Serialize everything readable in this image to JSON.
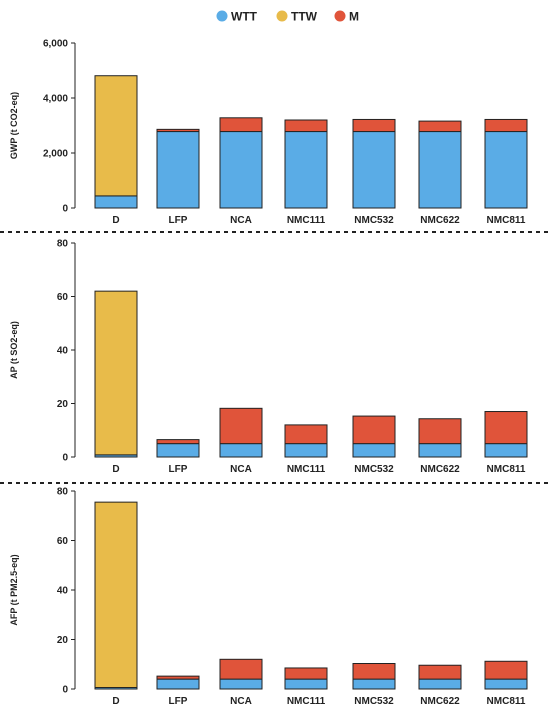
{
  "legend": {
    "items": [
      {
        "label": "WTT",
        "color": "#5AACE6"
      },
      {
        "label": "TTW",
        "color": "#E8BB4A"
      },
      {
        "label": "M",
        "color": "#E0543A"
      }
    ]
  },
  "chart_data": [
    {
      "type": "bar",
      "stacked": true,
      "ylabel": "GWP (t CO2-eq)",
      "ylim": [
        0,
        6000
      ],
      "yticks": [
        0,
        2000,
        4000,
        6000
      ],
      "ytick_labels": [
        "0",
        "2,000",
        "4,000",
        "6,000"
      ],
      "categories": [
        "D",
        "LFP",
        "NCA",
        "NMC111",
        "NMC532",
        "NMC622",
        "NMC811"
      ],
      "series": [
        {
          "name": "WTT",
          "values": [
            440,
            2780,
            2780,
            2780,
            2780,
            2780,
            2780
          ]
        },
        {
          "name": "TTW",
          "values": [
            4370,
            0,
            0,
            0,
            0,
            0,
            0
          ]
        },
        {
          "name": "M",
          "values": [
            0,
            80,
            500,
            420,
            440,
            380,
            440
          ]
        }
      ]
    },
    {
      "type": "bar",
      "stacked": true,
      "ylabel": "AP (t SO2-eq)",
      "ylim": [
        0,
        80
      ],
      "yticks": [
        0,
        20,
        40,
        60,
        80
      ],
      "ytick_labels": [
        "0",
        "20",
        "40",
        "60",
        "80"
      ],
      "categories": [
        "D",
        "LFP",
        "NCA",
        "NMC111",
        "NMC532",
        "NMC622",
        "NMC811"
      ],
      "series": [
        {
          "name": "WTT",
          "values": [
            0.8,
            5.0,
            5.0,
            5.0,
            5.0,
            5.0,
            5.0
          ]
        },
        {
          "name": "TTW",
          "values": [
            61.2,
            0,
            0,
            0,
            0,
            0,
            0
          ]
        },
        {
          "name": "M",
          "values": [
            0,
            1.5,
            13.2,
            7.0,
            10.3,
            9.3,
            12.0
          ]
        }
      ]
    },
    {
      "type": "bar",
      "stacked": true,
      "ylabel": "AFP (t PM2.5-eq)",
      "ylim": [
        0,
        80
      ],
      "yticks": [
        0,
        20,
        40,
        60,
        80
      ],
      "ytick_labels": [
        "0",
        "20",
        "40",
        "60",
        "80"
      ],
      "categories": [
        "D",
        "LFP",
        "NCA",
        "NMC111",
        "NMC532",
        "NMC622",
        "NMC811"
      ],
      "series": [
        {
          "name": "WTT",
          "values": [
            0.6,
            4.0,
            4.0,
            4.0,
            4.0,
            4.0,
            4.0
          ]
        },
        {
          "name": "TTW",
          "values": [
            74.9,
            0,
            0,
            0,
            0,
            0,
            0
          ]
        },
        {
          "name": "M",
          "values": [
            0,
            1.2,
            8.0,
            4.5,
            6.3,
            5.6,
            7.2
          ]
        }
      ]
    }
  ]
}
